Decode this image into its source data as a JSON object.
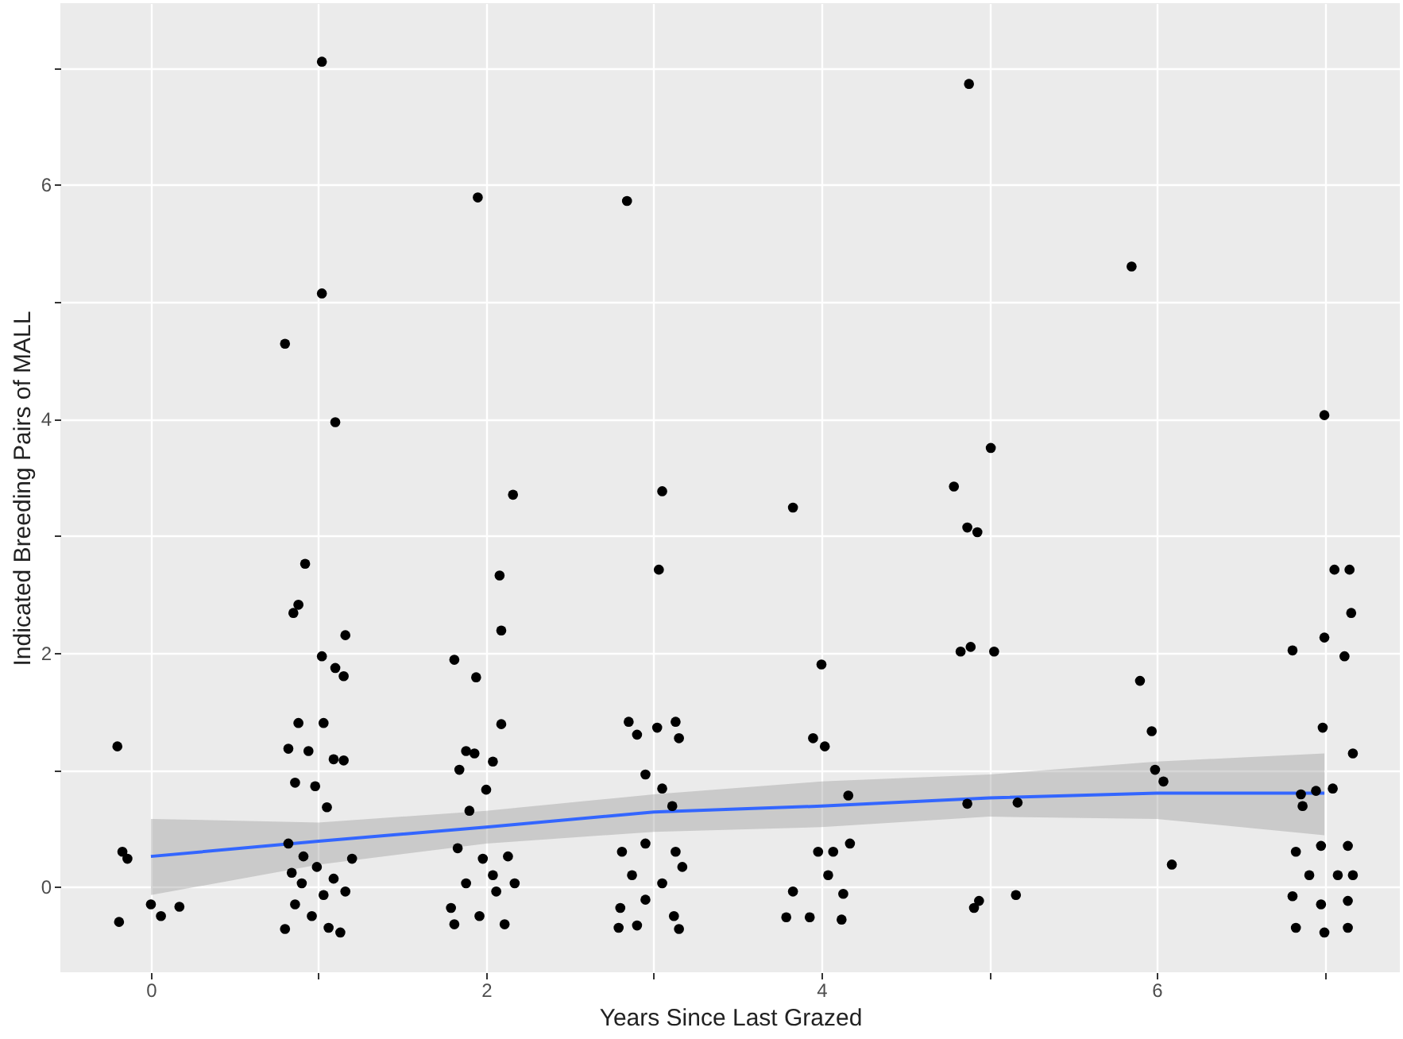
{
  "chart_data": {
    "type": "scatter",
    "xlabel": "Years Since Last Grazed",
    "ylabel": "Indicated Breeding Pairs of MALL",
    "xlim": [
      -0.54,
      7.45
    ],
    "ylim": [
      -0.73,
      7.55
    ],
    "xticks": [
      0,
      {
        "value": 1,
        "label": null
      },
      2,
      {
        "value": 3,
        "label": null
      },
      4,
      {
        "value": 5,
        "label": null
      },
      6,
      {
        "value": 7,
        "label": null
      }
    ],
    "yticks": [
      0,
      {
        "value": 1,
        "label": null
      },
      2,
      {
        "value": 3,
        "label": null
      },
      4,
      {
        "value": 5,
        "label": null
      },
      6,
      {
        "value": 7,
        "label": null
      }
    ],
    "grid": true,
    "series": [
      {
        "marker": "circle",
        "color": "#000000",
        "x": [
          -0.2,
          -0.17,
          -0.14,
          -0.19,
          0.0,
          0.06,
          0.17,
          1.02,
          0.8,
          1.02,
          1.1,
          0.92,
          0.88,
          0.85,
          1.02,
          1.1,
          1.15,
          1.16,
          0.88,
          1.03,
          0.82,
          0.94,
          1.09,
          1.15,
          0.86,
          0.98,
          1.05,
          0.82,
          0.91,
          0.99,
          1.09,
          1.16,
          0.86,
          0.96,
          1.06,
          1.13,
          0.8,
          1.2,
          0.9,
          1.03,
          0.84,
          1.95,
          2.16,
          2.08,
          2.09,
          1.81,
          1.94,
          2.09,
          1.88,
          1.93,
          1.84,
          2.04,
          2.0,
          1.9,
          1.83,
          1.98,
          2.13,
          1.88,
          2.06,
          1.79,
          1.96,
          2.11,
          2.17,
          1.81,
          2.04,
          2.84,
          3.05,
          3.03,
          2.85,
          2.9,
          3.13,
          3.02,
          3.15,
          2.95,
          3.05,
          3.11,
          2.81,
          2.95,
          3.13,
          2.87,
          3.05,
          3.17,
          2.8,
          2.95,
          3.12,
          2.79,
          3.15,
          2.9,
          3.83,
          4.0,
          3.95,
          4.02,
          4.16,
          3.98,
          4.07,
          4.04,
          3.83,
          4.13,
          3.79,
          3.93,
          4.12,
          4.17,
          4.88,
          5.01,
          4.79,
          4.87,
          4.93,
          4.83,
          4.89,
          5.03,
          4.87,
          5.17,
          4.94,
          4.91,
          5.16,
          5.85,
          5.9,
          5.97,
          5.99,
          6.04,
          6.09,
          7.0,
          6.81,
          7.0,
          7.06,
          7.15,
          7.16,
          7.12,
          6.99,
          7.17,
          6.86,
          6.87,
          7.05,
          6.95,
          6.83,
          6.98,
          7.14,
          6.91,
          7.08,
          6.81,
          6.98,
          7.14,
          6.83,
          7.0,
          7.14,
          7.17
        ],
        "values": [
          1.2,
          0.3,
          0.24,
          -0.3,
          -0.15,
          -0.25,
          -0.17,
          7.05,
          4.64,
          5.07,
          3.97,
          2.76,
          2.41,
          2.34,
          1.97,
          1.87,
          1.8,
          2.15,
          1.4,
          1.4,
          1.18,
          1.16,
          1.09,
          1.08,
          0.89,
          0.86,
          0.68,
          0.37,
          0.26,
          0.17,
          0.07,
          -0.04,
          -0.15,
          -0.25,
          -0.35,
          -0.39,
          -0.36,
          0.24,
          0.03,
          -0.07,
          0.12,
          5.89,
          3.35,
          2.66,
          2.19,
          1.94,
          1.79,
          1.39,
          1.16,
          1.14,
          1.0,
          1.07,
          0.83,
          0.65,
          0.33,
          0.24,
          0.26,
          0.03,
          -0.04,
          -0.18,
          -0.25,
          -0.32,
          0.03,
          -0.32,
          0.1,
          5.86,
          3.38,
          2.71,
          1.41,
          1.3,
          1.41,
          1.36,
          1.27,
          0.96,
          0.84,
          0.69,
          0.3,
          0.37,
          0.3,
          0.1,
          0.03,
          0.17,
          -0.18,
          -0.11,
          -0.25,
          -0.35,
          -0.36,
          -0.33,
          3.24,
          1.9,
          1.27,
          1.2,
          0.78,
          0.3,
          0.3,
          0.1,
          -0.04,
          -0.06,
          -0.26,
          -0.26,
          -0.28,
          0.37,
          6.86,
          3.75,
          3.42,
          3.07,
          3.03,
          2.01,
          2.05,
          2.01,
          0.71,
          0.72,
          -0.12,
          -0.18,
          -0.07,
          5.3,
          1.76,
          1.33,
          1.0,
          0.9,
          0.19,
          4.03,
          2.02,
          2.13,
          2.71,
          2.71,
          2.34,
          1.97,
          1.36,
          1.14,
          0.79,
          0.69,
          0.84,
          0.82,
          0.3,
          0.35,
          0.35,
          0.1,
          0.1,
          -0.08,
          -0.15,
          -0.12,
          -0.35,
          -0.39,
          -0.35,
          0.1
        ]
      },
      {
        "type": "line",
        "color": "#3366ff",
        "x": [
          0,
          1,
          2,
          3,
          4,
          5,
          6,
          7
        ],
        "values": [
          0.26,
          0.39,
          0.51,
          0.64,
          0.69,
          0.76,
          0.8,
          0.8
        ],
        "lower": [
          -0.07,
          0.19,
          0.37,
          0.47,
          0.51,
          0.6,
          0.58,
          0.44
        ],
        "upper": [
          0.58,
          0.55,
          0.65,
          0.79,
          0.9,
          0.96,
          1.07,
          1.14
        ]
      }
    ]
  }
}
